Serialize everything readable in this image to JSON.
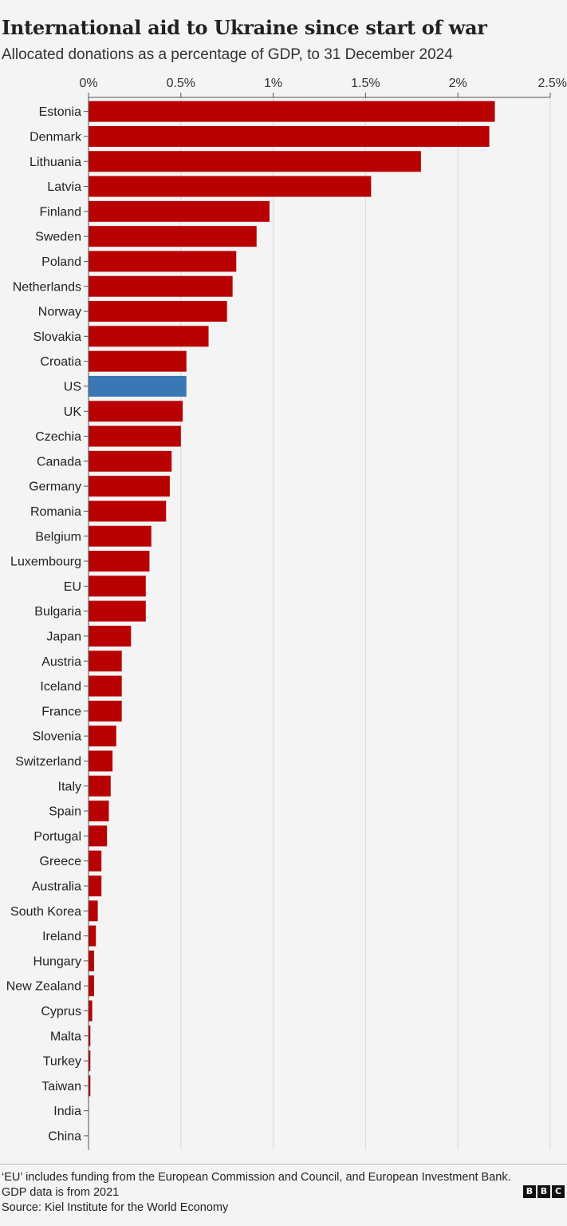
{
  "chart_data": {
    "type": "bar",
    "orientation": "horizontal",
    "title": "International aid to Ukraine since start of war",
    "subtitle": "Allocated donations as a percentage of GDP, to 31 December 2024",
    "xlim": [
      0,
      2.5
    ],
    "xticks": [
      0,
      0.5,
      1,
      1.5,
      2,
      2.5
    ],
    "xtick_labels": [
      "0%",
      "0.5%",
      "1%",
      "1.5%",
      "2%",
      "2.5%"
    ],
    "xaxis_position": "top",
    "grid": true,
    "categories": [
      "Estonia",
      "Denmark",
      "Lithuania",
      "Latvia",
      "Finland",
      "Sweden",
      "Poland",
      "Netherlands",
      "Norway",
      "Slovakia",
      "Croatia",
      "US",
      "UK",
      "Czechia",
      "Canada",
      "Germany",
      "Romania",
      "Belgium",
      "Luxembourg",
      "EU",
      "Bulgaria",
      "Japan",
      "Austria",
      "Iceland",
      "France",
      "Slovenia",
      "Switzerland",
      "Italy",
      "Spain",
      "Portugal",
      "Greece",
      "Australia",
      "South Korea",
      "Ireland",
      "Hungary",
      "New Zealand",
      "Cyprus",
      "Malta",
      "Turkey",
      "Taiwan",
      "India",
      "China"
    ],
    "values": [
      2.2,
      2.17,
      1.8,
      1.53,
      0.98,
      0.91,
      0.8,
      0.78,
      0.75,
      0.65,
      0.53,
      0.53,
      0.51,
      0.5,
      0.45,
      0.44,
      0.42,
      0.34,
      0.33,
      0.31,
      0.31,
      0.23,
      0.18,
      0.18,
      0.18,
      0.15,
      0.13,
      0.12,
      0.11,
      0.1,
      0.07,
      0.07,
      0.05,
      0.04,
      0.03,
      0.03,
      0.02,
      0.01,
      0.01,
      0.01,
      0.0,
      0.0
    ],
    "colors": {
      "default": "#b80000",
      "highlight": "#3a78b5",
      "highlight_category": "US"
    }
  },
  "footer": {
    "note": "‘EU’ includes funding from the European Commission and Council, and European Investment Bank. GDP data is from 2021",
    "source": "Source: Kiel Institute for the World Economy"
  },
  "logo": {
    "letters": [
      "B",
      "B",
      "C"
    ]
  }
}
